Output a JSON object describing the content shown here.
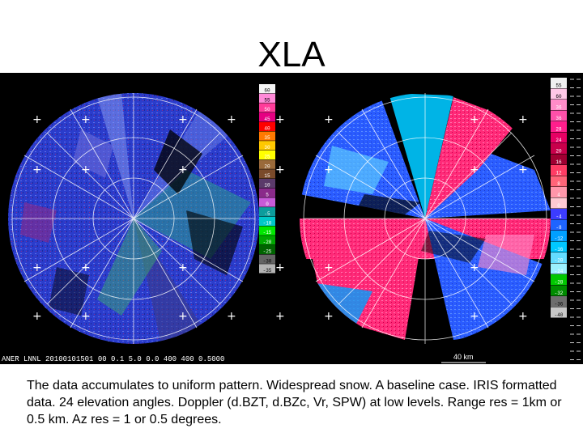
{
  "slide": {
    "title": "XLA",
    "caption": "The data accumulates to uniform pattern.  Widespread snow.  A baseline case. IRIS formatted data.  24 elevation angles.  Doppler (d.BZT, d.BZc, Vr, SPW) at low levels.  Range res = 1km or 0.5 km.  Az res = 1 or 0.5 degrees."
  },
  "radar": {
    "left_panel": {
      "footer": "ANER LNNL 20100101501 00 0.1 5.0 0.0 400 400 0.5000",
      "scale_labels": [
        "60",
        "55",
        "50",
        "45",
        "40",
        "35",
        "30",
        "25",
        "20",
        "15",
        "10",
        "5",
        "0",
        "-5",
        "-10",
        "-15",
        "-20",
        "-25",
        "-30",
        "-35"
      ],
      "scale_colors": [
        "#f4f4f4",
        "#ff8ad8",
        "#ff3c9a",
        "#e60082",
        "#ff0000",
        "#ff7a00",
        "#ffc800",
        "#ffff00",
        "#9a6a3a",
        "#7a4a2a",
        "#5a3a6a",
        "#8a2a8a",
        "#c85ad8",
        "#0c9c9c",
        "#00c8c8",
        "#00e800",
        "#00a800",
        "#006400",
        "#646464",
        "#b4b4b4"
      ]
    },
    "right_panel": {
      "footer": "40 km",
      "scale_labels": [
        "55",
        "60",
        "36",
        "36",
        "28",
        "24",
        "20",
        "16",
        "12",
        "8",
        "4",
        "0",
        "-4",
        "-8",
        "-12",
        "-16",
        "-20",
        "-24",
        "-28",
        "-32",
        "-36",
        "-40"
      ],
      "scale_colors": [
        "#f0f0f0",
        "#ffc8e6",
        "#ff8cc8",
        "#ff50aa",
        "#ff1e8c",
        "#e60064",
        "#c8004b",
        "#a00032",
        "#ff3c64",
        "#ff6478",
        "#ff96aa",
        "#ffc8d2",
        "#3c3cff",
        "#1e64ff",
        "#00a0ff",
        "#00c8ff",
        "#64dcff",
        "#9cf0ff",
        "#00c800",
        "#008c00",
        "#6e6e6e",
        "#c8c8c8"
      ]
    },
    "colors": {
      "background": "#000000",
      "grid": "#ffffff",
      "left_base": "#2a3ccc",
      "right_pos": "#ff2a78",
      "right_neg": "#2a5cff"
    }
  }
}
